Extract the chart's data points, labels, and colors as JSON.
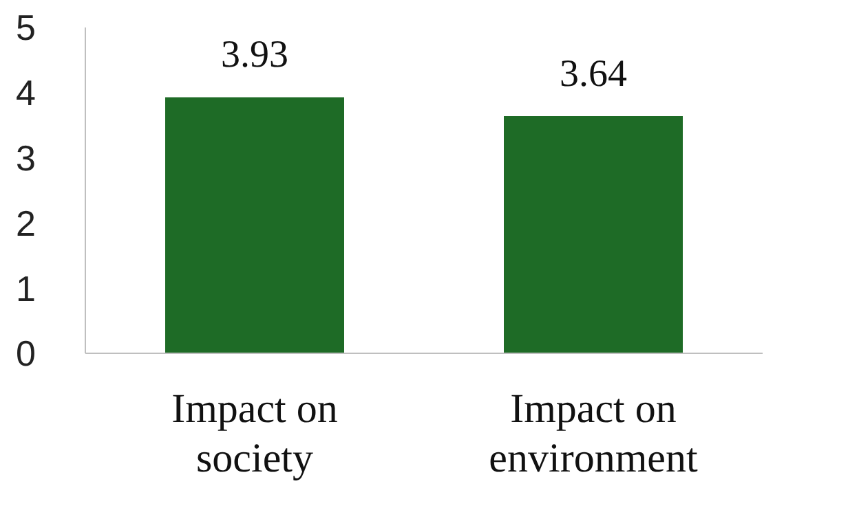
{
  "chart_data": {
    "type": "bar",
    "categories": [
      "Impact on society",
      "Impact on environment"
    ],
    "values": [
      3.93,
      3.64
    ],
    "color": "#1e6b26",
    "ylim": [
      0,
      5
    ],
    "yticks": [
      0,
      1,
      2,
      3,
      4,
      5
    ],
    "grid": false,
    "data_labels": true
  }
}
